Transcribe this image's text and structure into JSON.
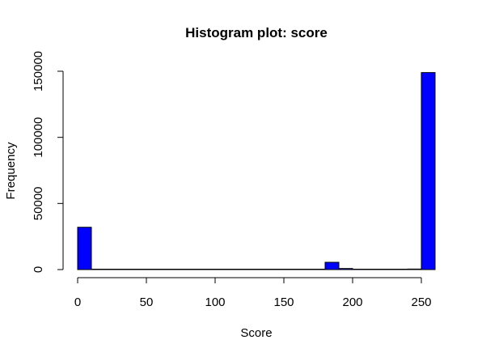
{
  "chart_data": {
    "type": "bar",
    "title": "Histogram plot: score",
    "xlabel": "Score",
    "ylabel": "Frequency",
    "bar_color": "#0000ff",
    "bin_width": 10,
    "bins": [
      {
        "start": 0,
        "end": 10,
        "count": 32000
      },
      {
        "start": 10,
        "end": 20,
        "count": 0
      },
      {
        "start": 20,
        "end": 30,
        "count": 0
      },
      {
        "start": 30,
        "end": 40,
        "count": 0
      },
      {
        "start": 40,
        "end": 50,
        "count": 0
      },
      {
        "start": 50,
        "end": 60,
        "count": 0
      },
      {
        "start": 60,
        "end": 70,
        "count": 0
      },
      {
        "start": 70,
        "end": 80,
        "count": 0
      },
      {
        "start": 80,
        "end": 90,
        "count": 0
      },
      {
        "start": 90,
        "end": 100,
        "count": 0
      },
      {
        "start": 100,
        "end": 110,
        "count": 0
      },
      {
        "start": 110,
        "end": 120,
        "count": 0
      },
      {
        "start": 120,
        "end": 130,
        "count": 0
      },
      {
        "start": 130,
        "end": 140,
        "count": 0
      },
      {
        "start": 140,
        "end": 150,
        "count": 0
      },
      {
        "start": 150,
        "end": 160,
        "count": 0
      },
      {
        "start": 160,
        "end": 170,
        "count": 0
      },
      {
        "start": 170,
        "end": 180,
        "count": 300
      },
      {
        "start": 180,
        "end": 190,
        "count": 5500
      },
      {
        "start": 190,
        "end": 200,
        "count": 800
      },
      {
        "start": 200,
        "end": 210,
        "count": 0
      },
      {
        "start": 210,
        "end": 220,
        "count": 0
      },
      {
        "start": 220,
        "end": 230,
        "count": 0
      },
      {
        "start": 230,
        "end": 240,
        "count": 100
      },
      {
        "start": 240,
        "end": 250,
        "count": 400
      },
      {
        "start": 250,
        "end": 260,
        "count": 149000
      }
    ],
    "xticks": [
      0,
      50,
      100,
      150,
      200,
      250
    ],
    "yticks": [
      0,
      50000,
      100000,
      150000
    ],
    "xlim": [
      0,
      260
    ],
    "ylim": [
      0,
      150000
    ],
    "grid": false,
    "legend": "none"
  }
}
